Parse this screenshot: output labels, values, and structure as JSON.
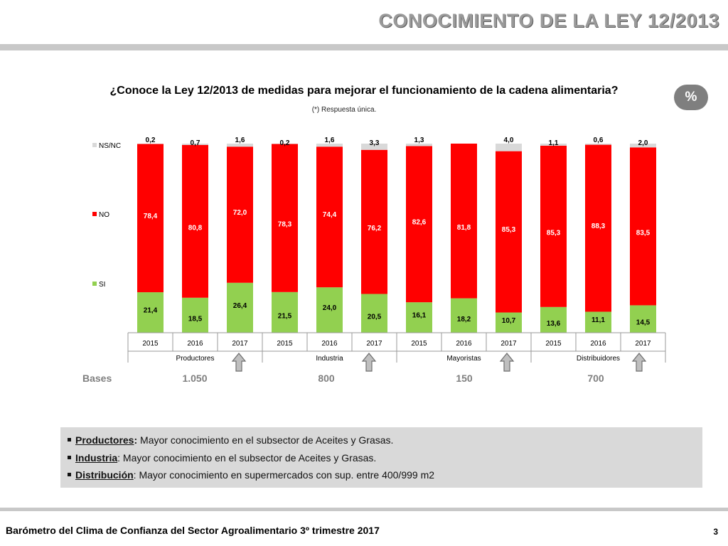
{
  "header": {
    "title": "CONOCIMIENTO DE LA LEY 12/2013"
  },
  "question": "¿Conoce la Ley 12/2013 de medidas para mejorar el funcionamiento de la cadena alimentaria?",
  "note": "(*) Respuesta única.",
  "badge": "%",
  "chart_data": {
    "type": "bar",
    "stacked": true,
    "categories": [
      "2015",
      "2016",
      "2017",
      "2015",
      "2016",
      "2017",
      "2015",
      "2016",
      "2017",
      "2015",
      "2016",
      "2017"
    ],
    "groups": [
      "Productores",
      "Industria",
      "Mayoristas",
      "Distribuidores"
    ],
    "series": [
      {
        "name": "SI",
        "color": "#92d050",
        "values": [
          21.4,
          18.5,
          26.4,
          21.5,
          24.0,
          20.5,
          16.1,
          18.2,
          10.7,
          13.6,
          11.1,
          14.5
        ]
      },
      {
        "name": "NO",
        "color": "#ff0000",
        "values": [
          78.4,
          80.8,
          72.0,
          78.3,
          74.4,
          76.2,
          82.6,
          81.8,
          85.3,
          85.3,
          88.3,
          83.5
        ]
      },
      {
        "name": "NS/NC",
        "color": "#d9d9d9",
        "values": [
          0.2,
          0.7,
          1.6,
          0.2,
          1.6,
          3.3,
          1.3,
          null,
          4.0,
          1.1,
          0.6,
          2.0
        ]
      }
    ],
    "legend": [
      "NS/NC",
      "NO",
      "SI"
    ],
    "legend_position": "left",
    "ylim": [
      0,
      100
    ]
  },
  "bases": {
    "label": "Bases",
    "values": [
      "1.050",
      "800",
      "150",
      "700"
    ]
  },
  "notes": [
    {
      "label": "Productores",
      "sep": ":",
      "text": " Mayor conocimiento en el subsector de Aceites y Grasas."
    },
    {
      "label": "Industria",
      "sep": ":",
      "text": " Mayor conocimiento en el subsector de Aceites y Grasas."
    },
    {
      "label": "Distribución",
      "sep": ":",
      "text": " Mayor conocimiento en supermercados con sup. entre 400/999 m2"
    }
  ],
  "icons": [
    "up-arrow-icon"
  ],
  "footer": {
    "text": "Barómetro del Clima de Confianza del Sector Agroalimentario 3º trimestre 2017",
    "page": "3"
  }
}
